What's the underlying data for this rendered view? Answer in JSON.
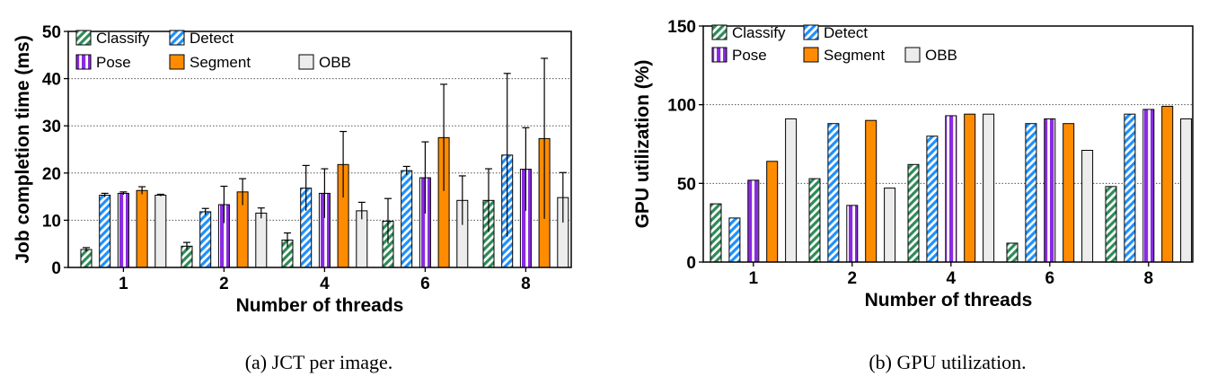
{
  "series_colors": {
    "Classify": "#2e8b57",
    "Detect": "#1e90ff",
    "Pose": "#8a2be2",
    "Segment": "#ff8c00",
    "OBB": "#ececec"
  },
  "chart_data": [
    {
      "type": "bar",
      "caption": "(a)  JCT  per  image.",
      "xlabel": "Number of threads",
      "ylabel": "Job completion time (ms)",
      "categories": [
        "1",
        "2",
        "4",
        "6",
        "8"
      ],
      "ylim": [
        0,
        50
      ],
      "yticks": [
        "0",
        "10",
        "20",
        "30",
        "40",
        "50"
      ],
      "grid": "horizontal dotted at 10,20,30,40",
      "legend": "top-left",
      "series": [
        {
          "name": "Classify",
          "values": [
            3.8,
            4.5,
            5.8,
            9.8,
            14.2
          ],
          "errors": [
            0.4,
            0.8,
            1.5,
            4.8,
            6.7
          ]
        },
        {
          "name": "Detect",
          "values": [
            15.3,
            11.8,
            16.8,
            20.5,
            23.8
          ],
          "errors": [
            0.4,
            0.7,
            4.8,
            0.9,
            17.3
          ]
        },
        {
          "name": "Pose",
          "values": [
            15.7,
            13.3,
            15.7,
            19.0,
            20.8
          ],
          "errors": [
            0.3,
            3.9,
            5.2,
            7.6,
            8.8
          ]
        },
        {
          "name": "Segment",
          "values": [
            16.3,
            16.0,
            21.8,
            27.5,
            27.3
          ],
          "errors": [
            0.8,
            2.8,
            7.0,
            11.3,
            17.0
          ]
        },
        {
          "name": "OBB",
          "values": [
            15.3,
            11.5,
            12.0,
            14.2,
            14.8
          ],
          "errors": [
            0.2,
            1.1,
            1.8,
            5.2,
            5.3
          ]
        }
      ]
    },
    {
      "type": "bar",
      "caption": "(b)  GPU  utilization.",
      "xlabel": "Number of threads",
      "ylabel": "GPU utilization (%)",
      "categories": [
        "1",
        "2",
        "4",
        "6",
        "8"
      ],
      "ylim": [
        0,
        150
      ],
      "yticks": [
        "0",
        "50",
        "100",
        "150"
      ],
      "grid": "horizontal dotted at 50,100",
      "legend": "top-left",
      "series": [
        {
          "name": "Classify",
          "values": [
            37,
            53,
            62,
            12,
            48
          ]
        },
        {
          "name": "Detect",
          "values": [
            28,
            88,
            80,
            88,
            94
          ]
        },
        {
          "name": "Pose",
          "values": [
            52,
            36,
            93,
            91,
            97
          ]
        },
        {
          "name": "Segment",
          "values": [
            64,
            90,
            94,
            88,
            99
          ]
        },
        {
          "name": "OBB",
          "values": [
            91,
            47,
            94,
            71,
            91
          ]
        }
      ]
    }
  ]
}
